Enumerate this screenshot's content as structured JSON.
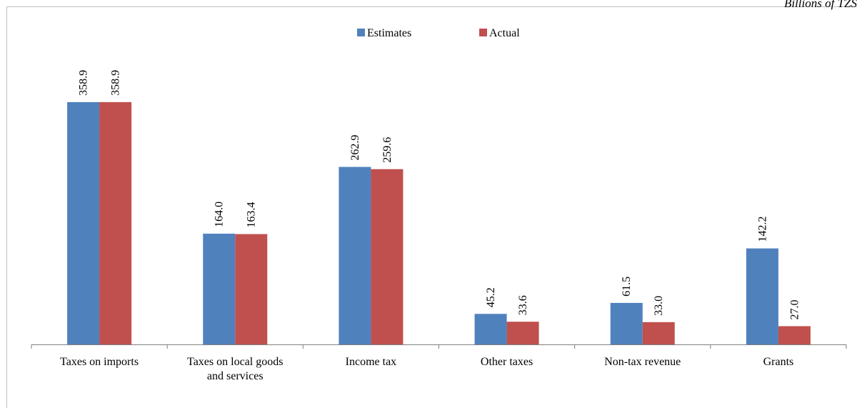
{
  "unit_note": "Billions of TZS",
  "chart_data": {
    "type": "bar",
    "categories": [
      "Taxes on imports",
      "Taxes on local goods and services",
      "Income tax",
      "Other taxes",
      "Non-tax revenue",
      "Grants"
    ],
    "category_lines": [
      [
        "Taxes on imports"
      ],
      [
        "Taxes on local goods",
        "and services"
      ],
      [
        "Income tax"
      ],
      [
        "Other taxes"
      ],
      [
        "Non-tax revenue"
      ],
      [
        "Grants"
      ]
    ],
    "series": [
      {
        "name": "Estimates",
        "color": "#4f81bd",
        "values": [
          358.9,
          164.0,
          262.9,
          45.2,
          61.5,
          142.2
        ],
        "labels": [
          "358.9",
          "164.0",
          "262.9",
          "45.2",
          "61.5",
          "142.2"
        ]
      },
      {
        "name": "Actual",
        "color": "#c0504d",
        "values": [
          358.9,
          163.4,
          259.6,
          33.6,
          33.0,
          27.0
        ],
        "labels": [
          "358.9",
          "163.4",
          "259.6",
          "33.6",
          "33.0",
          "27.0"
        ]
      }
    ],
    "ylim": [
      0,
      400
    ],
    "legend_position": "top-center",
    "grid": false
  }
}
